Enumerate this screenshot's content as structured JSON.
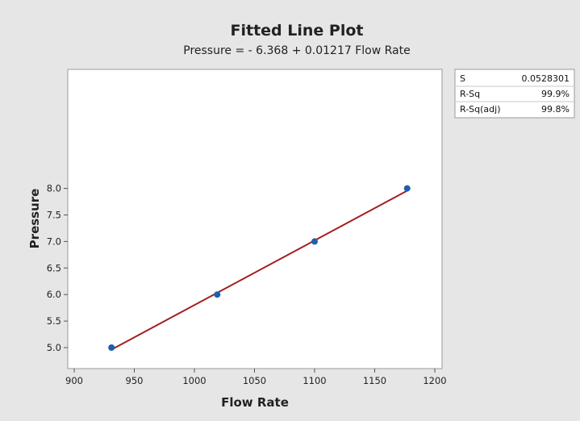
{
  "chart_data": {
    "type": "scatter",
    "title": "Fitted Line Plot",
    "subtitle": "Pressure = - 6.368 + 0.01217 Flow Rate",
    "xlabel": "Flow Rate",
    "ylabel": "Pressure",
    "xlim": [
      900,
      1200
    ],
    "ylim": [
      4.9,
      8.1
    ],
    "xticks": [
      900,
      950,
      1000,
      1050,
      1100,
      1150,
      1200
    ],
    "yticks": [
      5.0,
      5.5,
      6.0,
      6.5,
      7.0,
      7.5,
      8.0
    ],
    "ytick_labels": [
      "5.0",
      "5.5",
      "6.0",
      "6.5",
      "7.0",
      "7.5",
      "8.0"
    ],
    "series": [
      {
        "points": [
          {
            "x": 931,
            "y": 5.0
          },
          {
            "x": 1019,
            "y": 6.0
          },
          {
            "x": 1100,
            "y": 7.0
          },
          {
            "x": 1177,
            "y": 8.0
          }
        ],
        "color": "#1f5fae"
      }
    ],
    "fit": {
      "intercept": -6.368,
      "slope": 0.01217,
      "x_range": [
        931,
        1177
      ],
      "color": "#a31f1f"
    },
    "stats": [
      {
        "label": "S",
        "value": "0.0528301"
      },
      {
        "label": "R-Sq",
        "value": "99.9%"
      },
      {
        "label": "R-Sq(adj)",
        "value": "99.8%"
      }
    ],
    "grid": false,
    "plot_background": "#ffffff",
    "figure_background": "#e6e6e6"
  }
}
